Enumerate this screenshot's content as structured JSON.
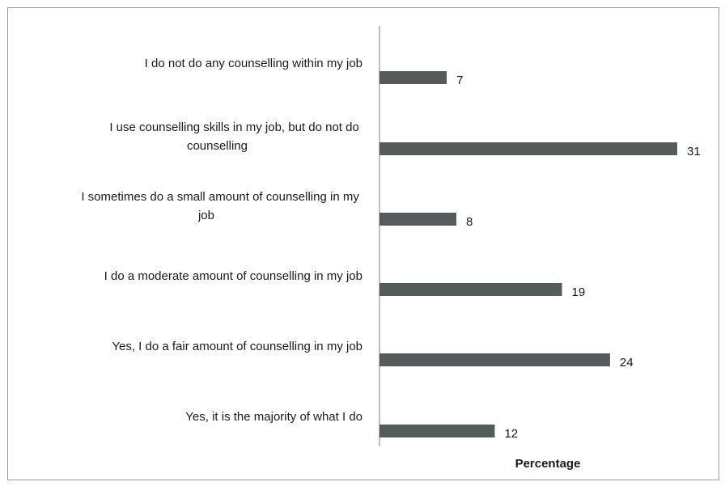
{
  "chart_data": {
    "type": "bar",
    "orientation": "horizontal",
    "categories": [
      "I do not do any counselling within my job",
      "I use counselling skills in my job, but do not do counselling",
      "I sometimes do a small amount of counselling in my job",
      "I do a moderate amount of counselling in my job",
      "Yes, I do a fair amount of counselling in my job",
      "Yes, it is the majority of what I do"
    ],
    "values": [
      7,
      31,
      8,
      19,
      24,
      12
    ],
    "xlabel": "Percentage",
    "ylabel": "",
    "title": "",
    "xlim": [
      0,
      31
    ],
    "grid": false,
    "legend": "none",
    "colors": {
      "bar": "#555b5a",
      "axis": "#a8a8a8",
      "text": "#1a1a1a"
    }
  }
}
